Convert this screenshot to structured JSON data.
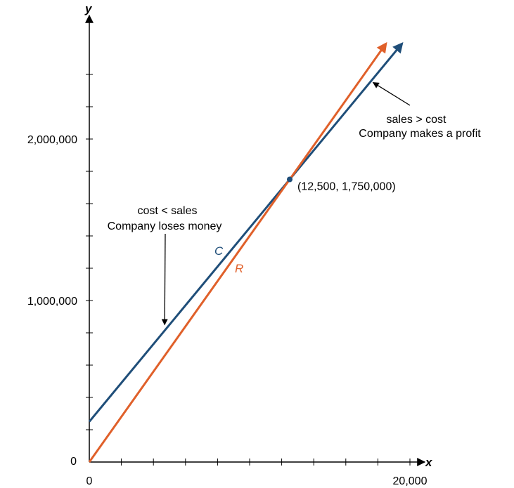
{
  "chart_data": {
    "type": "line",
    "xlabel": "x",
    "ylabel": "y",
    "xlim": [
      0,
      20000
    ],
    "ylim": [
      0,
      2500000
    ],
    "x_tick_labels": [
      {
        "value": 0,
        "label": "0"
      },
      {
        "value": 20000,
        "label": "20,000"
      }
    ],
    "y_tick_labels": [
      {
        "value": 0,
        "label": "0"
      },
      {
        "value": 1000000,
        "label": "1,000,000"
      },
      {
        "value": 2000000,
        "label": "2,000,000"
      }
    ],
    "x_minor_tick_step": 2000,
    "y_minor_tick_step": 200000,
    "series": [
      {
        "name": "C",
        "color": "#1f4e79",
        "x": [
          0,
          19500
        ],
        "y": [
          250000,
          2590000
        ]
      },
      {
        "name": "R",
        "color": "#e0602a",
        "x": [
          0,
          18500
        ],
        "y": [
          0,
          2590000
        ]
      }
    ],
    "point": {
      "x": 12500,
      "y": 1750000,
      "label": "(12,500, 1,750,000)"
    },
    "annotations": [
      {
        "lines": [
          "cost < sales",
          "Company loses money"
        ],
        "target": {
          "x": 4700,
          "y": 850000
        }
      },
      {
        "lines": [
          "sales > cost",
          "Company makes a profit"
        ],
        "target": {
          "x": 17700,
          "y": 2350000
        }
      }
    ],
    "grid": false,
    "legend": "none"
  }
}
